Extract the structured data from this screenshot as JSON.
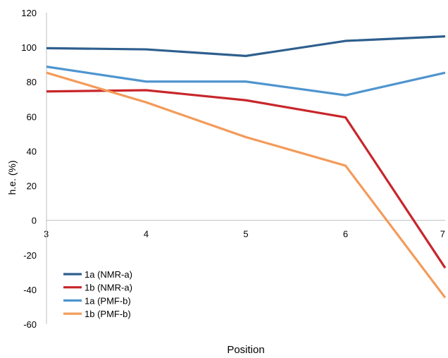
{
  "chart_data": {
    "type": "line",
    "title": "",
    "xlabel": "Position",
    "ylabel": "h.e. (%)",
    "x": [
      3,
      4,
      5,
      6,
      7
    ],
    "ylim": [
      -60,
      120
    ],
    "yticks": [
      "120",
      "100",
      "80",
      "60",
      "40",
      "20",
      "0",
      "-20",
      "-40",
      "-60"
    ],
    "xticks": [
      "3",
      "4",
      "5",
      "6",
      "7"
    ],
    "grid": false,
    "legend_position": "bottom-left",
    "series": [
      {
        "name": "1a (NMR-a)",
        "color": "#2e5f8e",
        "values": [
          99.5,
          98.8,
          95,
          103.7,
          106.3
        ]
      },
      {
        "name": "1b (NMR-a)",
        "color": "#c8262b",
        "values": [
          74.5,
          75.2,
          69.4,
          59.5,
          -27.5
        ]
      },
      {
        "name": "1a (PMF-b)",
        "color": "#4f95cf",
        "values": [
          88.8,
          80.2,
          80.2,
          72.3,
          85.3
        ]
      },
      {
        "name": "1b (PMF-b)",
        "color": "#f39b5a",
        "values": [
          85.3,
          68.2,
          48.1,
          31.6,
          -44.7
        ]
      }
    ]
  }
}
